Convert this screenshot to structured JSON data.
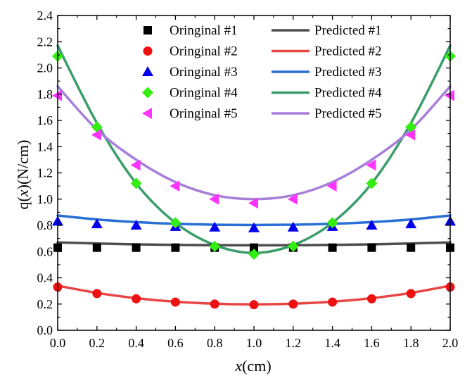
{
  "chart_data": {
    "type": "scatter",
    "xlabel": "x(cm)",
    "xlabel_parts": [
      "x",
      "(cm)"
    ],
    "ylabel": "q(x)(N/cm)",
    "ylabel_parts": [
      "q(",
      "x",
      ")(N/cm)"
    ],
    "xlim": [
      0.0,
      2.0
    ],
    "ylim": [
      0.0,
      2.4
    ],
    "xticks": [
      "0.0",
      "0.2",
      "0.4",
      "0.6",
      "0.8",
      "1.0",
      "1.2",
      "1.4",
      "1.6",
      "1.8",
      "2.0"
    ],
    "yticks": [
      "0.0",
      "0.2",
      "0.4",
      "0.6",
      "0.8",
      "1.0",
      "1.2",
      "1.4",
      "1.6",
      "1.8",
      "2.0",
      "2.2",
      "2.4"
    ],
    "grid": false,
    "legend_position": "top",
    "x": [
      0.0,
      0.2,
      0.4,
      0.6,
      0.8,
      1.0,
      1.2,
      1.4,
      1.6,
      1.8,
      2.0
    ],
    "series": [
      {
        "name": "Oringinal #1",
        "kind": "markers",
        "marker": "square",
        "color": "#000000",
        "values": [
          0.63,
          0.63,
          0.63,
          0.63,
          0.63,
          0.63,
          0.63,
          0.63,
          0.63,
          0.63,
          0.63
        ]
      },
      {
        "name": "Oringinal #2",
        "kind": "markers",
        "marker": "circle",
        "color": "#ee1111",
        "values": [
          0.33,
          0.28,
          0.24,
          0.215,
          0.2,
          0.195,
          0.2,
          0.215,
          0.24,
          0.28,
          0.33
        ]
      },
      {
        "name": "Oringinal #3",
        "kind": "markers",
        "marker": "triangle-up",
        "color": "#0000ee",
        "values": [
          0.83,
          0.81,
          0.8,
          0.79,
          0.785,
          0.78,
          0.785,
          0.79,
          0.8,
          0.81,
          0.83
        ]
      },
      {
        "name": "Oringinal #4",
        "kind": "markers",
        "marker": "diamond",
        "color": "#33ee11",
        "values": [
          2.09,
          1.55,
          1.12,
          0.82,
          0.64,
          0.58,
          0.64,
          0.82,
          1.12,
          1.55,
          2.09
        ]
      },
      {
        "name": "Oringinal #5",
        "kind": "markers",
        "marker": "triangle-left",
        "color": "#ff33ff",
        "values": [
          1.79,
          1.49,
          1.26,
          1.1,
          1.0,
          0.97,
          1.0,
          1.1,
          1.26,
          1.49,
          1.79
        ]
      },
      {
        "name": "Predicted #1",
        "kind": "line",
        "color": "#4d4d4d",
        "values": [
          0.67,
          0.662,
          0.655,
          0.651,
          0.649,
          0.648,
          0.649,
          0.651,
          0.655,
          0.662,
          0.67
        ]
      },
      {
        "name": "Predicted #2",
        "kind": "line",
        "color": "#e84545",
        "values": [
          0.34,
          0.285,
          0.245,
          0.218,
          0.203,
          0.198,
          0.203,
          0.218,
          0.245,
          0.285,
          0.34
        ]
      },
      {
        "name": "Predicted #3",
        "kind": "line",
        "color": "#2a6fd6",
        "values": [
          0.875,
          0.845,
          0.825,
          0.812,
          0.805,
          0.803,
          0.805,
          0.812,
          0.825,
          0.845,
          0.875
        ]
      },
      {
        "name": "Predicted #4",
        "kind": "line",
        "color": "#3a9e6a",
        "values": [
          2.17,
          1.58,
          1.12,
          0.82,
          0.65,
          0.59,
          0.65,
          0.82,
          1.12,
          1.58,
          2.17
        ]
      },
      {
        "name": "Predicted #5",
        "kind": "line",
        "color": "#a77fd9",
        "values": [
          1.86,
          1.53,
          1.3,
          1.13,
          1.03,
          1.0,
          1.03,
          1.13,
          1.3,
          1.53,
          1.86
        ]
      }
    ]
  }
}
